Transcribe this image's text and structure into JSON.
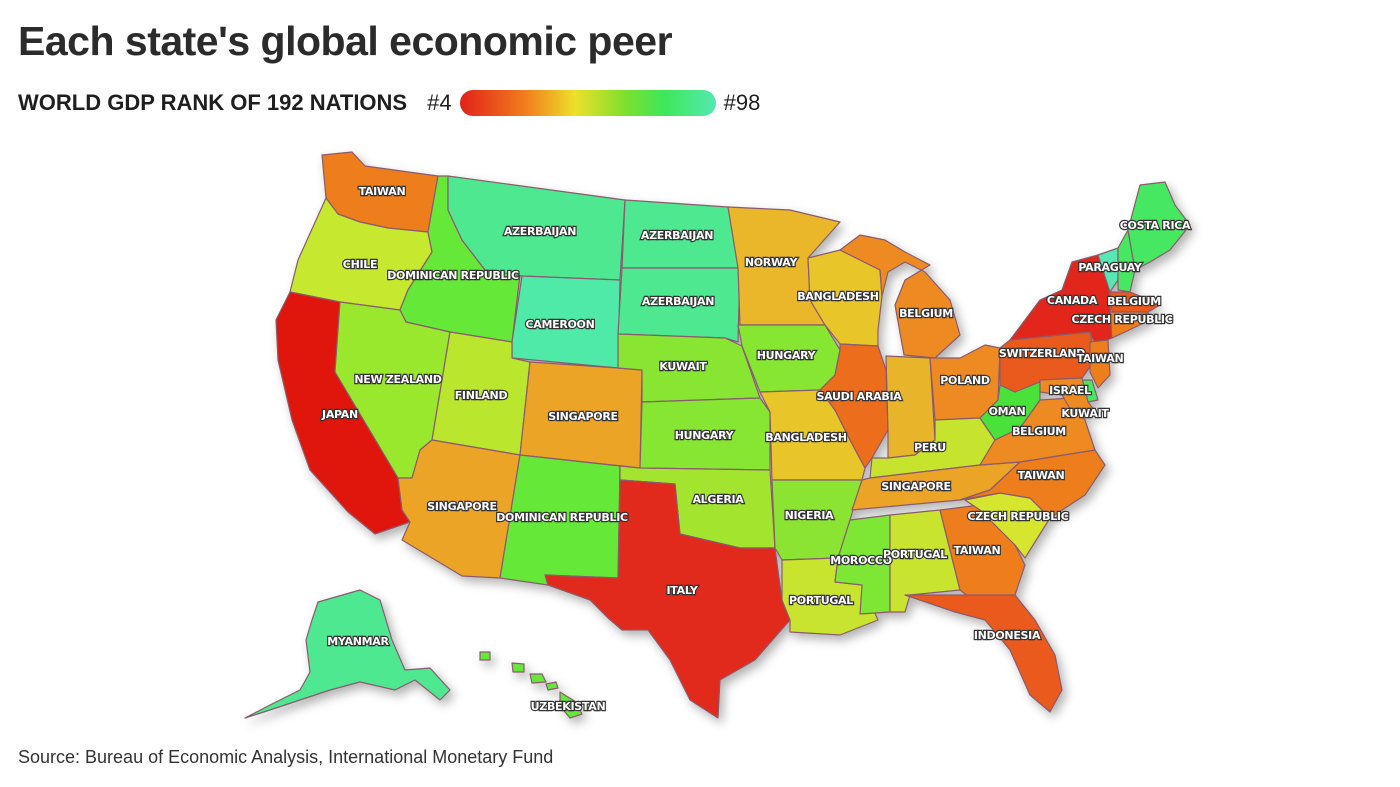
{
  "title": "Each state's global economic peer",
  "legend": {
    "title": "WORLD GDP RANK OF 192 NATIONS",
    "low": "#4",
    "high": "#98",
    "gradient": [
      "#e3211a",
      "#f07b1d",
      "#ece02a",
      "#7ae02e",
      "#3de85a",
      "#55e8b0"
    ]
  },
  "source": "Source: Bureau of Economic Analysis, International Monetary Fund",
  "states": {
    "WA": {
      "label": "TAIWAN",
      "color": "#ee7e1e"
    },
    "OR": {
      "label": "CHILE",
      "color": "#c6e82e"
    },
    "CA": {
      "label": "JAPAN",
      "color": "#e0170f"
    },
    "ID": {
      "label": "DOMINICAN REPUBLIC",
      "color": "#66e838"
    },
    "NV": {
      "label": "NEW ZEALAND",
      "color": "#9ae82e"
    },
    "MT": {
      "label": "AZERBAIJAN",
      "color": "#4de890"
    },
    "WY": {
      "label": "CAMEROON",
      "color": "#4feaa8"
    },
    "UT": {
      "label": "FINLAND",
      "color": "#bbe62e"
    },
    "AZ": {
      "label": "SINGAPORE",
      "color": "#eca428"
    },
    "CO": {
      "label": "SINGAPORE",
      "color": "#eca428"
    },
    "NM": {
      "label": "DOMINICAN REPUBLIC",
      "color": "#66e838"
    },
    "ND": {
      "label": "AZERBAIJAN",
      "color": "#4de890"
    },
    "SD": {
      "label": "AZERBAIJAN",
      "color": "#4de890"
    },
    "NE": {
      "label": "KUWAIT",
      "color": "#88e630"
    },
    "KS": {
      "label": "HUNGARY",
      "color": "#86e632"
    },
    "OK": {
      "label": "ALGERIA",
      "color": "#a2e42e"
    },
    "TX": {
      "label": "ITALY",
      "color": "#e2291a"
    },
    "MN": {
      "label": "NORWAY",
      "color": "#eab62a"
    },
    "IA": {
      "label": "HUNGARY",
      "color": "#86e632"
    },
    "MO": {
      "label": "BANGLADESH",
      "color": "#e8c62a"
    },
    "AR": {
      "label": "NIGERIA",
      "color": "#8ce432"
    },
    "LA": {
      "label": "PORTUGAL",
      "color": "#c8e42e"
    },
    "WI": {
      "label": "BANGLADESH",
      "color": "#e8c62a"
    },
    "IL": {
      "label": "SAUDI ARABIA",
      "color": "#ec6d1e"
    },
    "MS": {
      "label": "MOROCCO",
      "color": "#7ee634"
    },
    "MI": {
      "label": "BELGIUM",
      "color": "#ee8a24"
    },
    "IN": {
      "label": "PERU",
      "color": "#e8b42a"
    },
    "OH": {
      "label": "POLAND",
      "color": "#ee8a24"
    },
    "KY": {
      "label": "PERU",
      "color": "#c6e42e"
    },
    "TN": {
      "label": "SINGAPORE",
      "color": "#eca428"
    },
    "AL": {
      "label": "PORTUGAL",
      "color": "#c8e42e"
    },
    "GA": {
      "label": "TAIWAN",
      "color": "#ee7e1e"
    },
    "FL": {
      "label": "INDONESIA",
      "color": "#ea5a1c"
    },
    "SC": {
      "label": "CZECH REPUBLIC",
      "color": "#d6e62e"
    },
    "NC": {
      "label": "TAIWAN",
      "color": "#ee7e1e"
    },
    "VA": {
      "label": "BELGIUM",
      "color": "#ee8a24"
    },
    "WV": {
      "label": "OMAN",
      "color": "#48e23a"
    },
    "PA": {
      "label": "SWITZERLAND",
      "color": "#ea5a1c"
    },
    "NY": {
      "label": "CANADA",
      "color": "#e2281a"
    },
    "VT": {
      "label": "PARAGUAY",
      "color": "#55e8b4"
    },
    "NH": {
      "label": "BELGIUM",
      "color": "#44e860"
    },
    "ME": {
      "label": "COSTA RICA",
      "color": "#44e860"
    },
    "MA": {
      "label": "BELGIUM",
      "color": "#ea5a1c"
    },
    "CT": {
      "label": "CZECH REPUBLIC",
      "color": "#ee7e1e"
    },
    "NJ": {
      "label": "TAIWAN",
      "color": "#ee7e1e"
    },
    "DE": {
      "label": "ISRAEL",
      "color": "#44e860"
    },
    "MD": {
      "label": "KUWAIT",
      "color": "#ee8a24"
    },
    "AK": {
      "label": "MYANMAR",
      "color": "#4de890"
    },
    "HI": {
      "label": "UZBEKISTAN",
      "color": "#66e838"
    }
  }
}
